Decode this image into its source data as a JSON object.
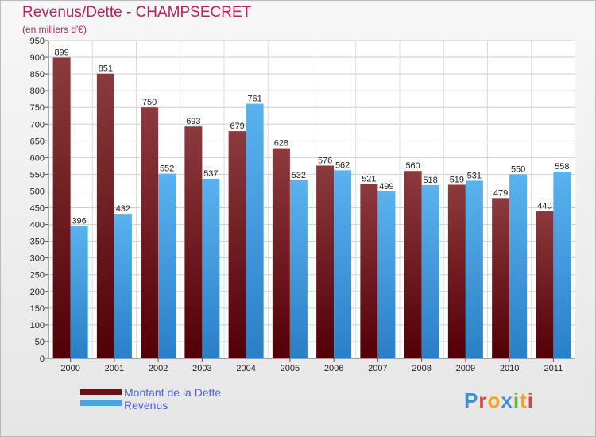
{
  "header": {
    "title": "Revenus/Dette - CHAMPSECRET",
    "subtitle": "(en milliers d'€)"
  },
  "chart_data": {
    "type": "bar",
    "categories": [
      "2000",
      "2001",
      "2002",
      "2003",
      "2004",
      "2005",
      "2006",
      "2007",
      "2008",
      "2009",
      "2010",
      "2011"
    ],
    "series": [
      {
        "name": "Montant de la Dette",
        "color": "#7a1b1e",
        "values": [
          899,
          851,
          750,
          693,
          679,
          628,
          576,
          521,
          560,
          519,
          479,
          440
        ]
      },
      {
        "name": "Revenus",
        "color": "#4aa3e6",
        "values": [
          396,
          432,
          552,
          537,
          761,
          532,
          562,
          499,
          518,
          531,
          550,
          558
        ]
      }
    ],
    "ylim": [
      0,
      950
    ],
    "ytick_step": 50,
    "grid": true,
    "legend_position": "bottom-left"
  },
  "legend": {
    "items": [
      {
        "label": "Montant de la Dette",
        "color": "#7a1b1e"
      },
      {
        "label": "Revenus",
        "color": "#4aa3e6"
      }
    ]
  },
  "logo": {
    "text": "Proxiti",
    "colors": [
      "#3f8fd6",
      "#e0413f",
      "#f2a21b",
      "#3f8fd6",
      "#6cb33e",
      "#f2a21b",
      "#e0413f"
    ]
  }
}
